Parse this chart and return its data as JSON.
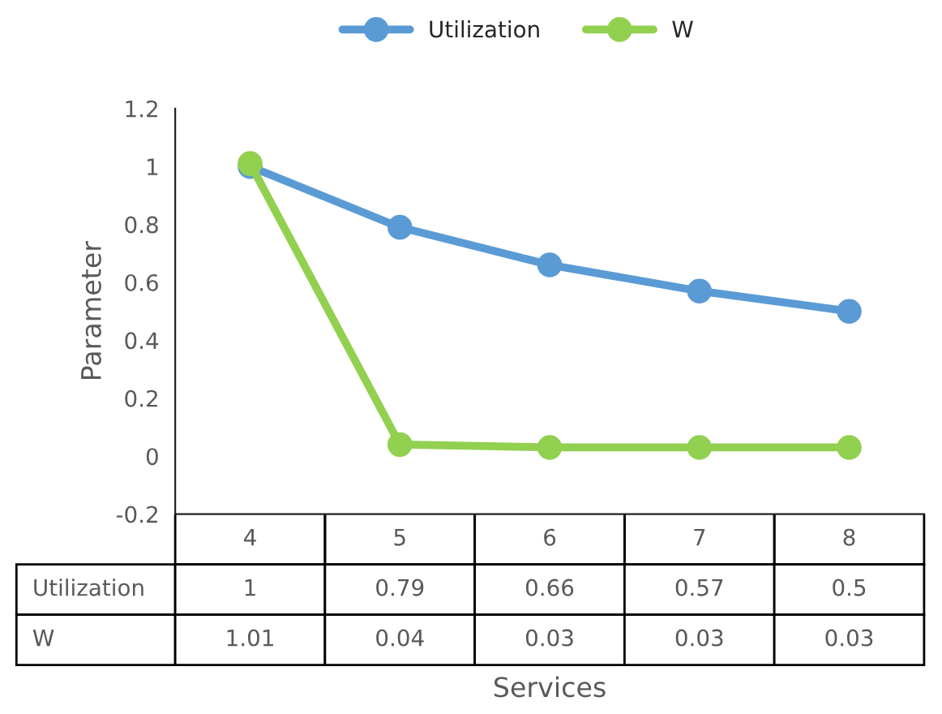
{
  "chart_data": {
    "type": "line",
    "xlabel": "Services",
    "ylabel": "Parameter",
    "categories": [
      "4",
      "5",
      "6",
      "7",
      "8"
    ],
    "series": [
      {
        "name": "Utilization",
        "color": "#5b9bd5",
        "values": [
          1,
          0.79,
          0.66,
          0.57,
          0.5
        ]
      },
      {
        "name": "W",
        "color": "#92d050",
        "values": [
          1.01,
          0.04,
          0.03,
          0.03,
          0.03
        ]
      }
    ],
    "ylim": [
      -0.2,
      1.2
    ],
    "yticks": [
      -0.2,
      0,
      0.2,
      0.4,
      0.6,
      0.8,
      1,
      1.2
    ],
    "marker": "circle",
    "line_style": "solid",
    "legend": "top",
    "data_labels": true,
    "grid": false
  }
}
